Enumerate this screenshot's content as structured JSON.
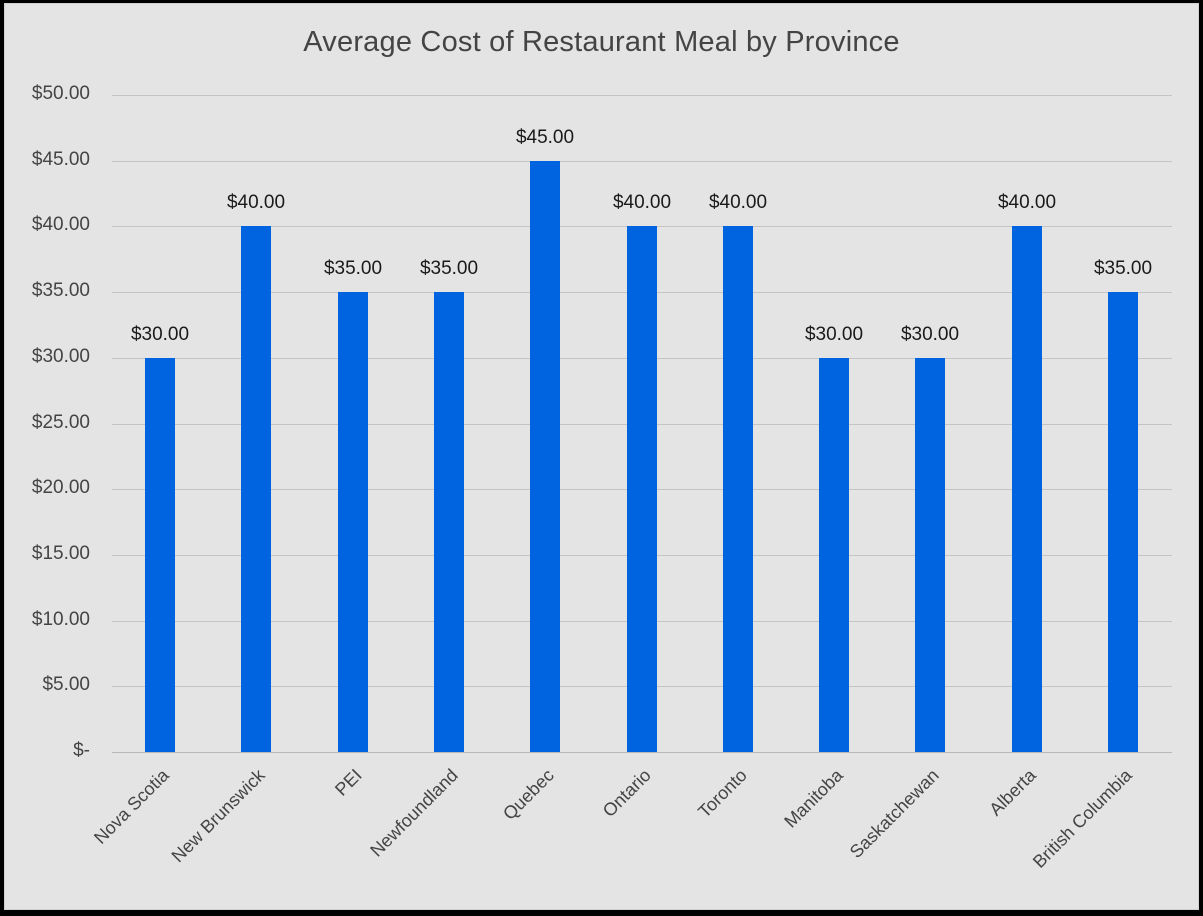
{
  "chart_data": {
    "type": "bar",
    "title": "Average Cost of Restaurant Meal by Province",
    "xlabel": "",
    "ylabel": "",
    "categories": [
      "Nova Scotia",
      "New Brunswick",
      "PEI",
      "Newfoundland",
      "Quebec",
      "Ontario",
      "Toronto",
      "Manitoba",
      "Saskatchewan",
      "Alberta",
      "British Columbia"
    ],
    "values": [
      30,
      40,
      35,
      35,
      45,
      40,
      40,
      30,
      30,
      40,
      35
    ],
    "data_labels": [
      "$30.00",
      "$40.00",
      "$35.00",
      "$35.00",
      "$45.00",
      "$40.00",
      "$40.00",
      "$30.00",
      "$30.00",
      "$40.00",
      "$35.00"
    ],
    "ylim": [
      0,
      50
    ],
    "y_ticks": [
      0,
      5,
      10,
      15,
      20,
      25,
      30,
      35,
      40,
      45,
      50
    ],
    "y_tick_labels": [
      "$-",
      "$5.00",
      "$10.00",
      "$15.00",
      "$20.00",
      "$25.00",
      "$30.00",
      "$35.00",
      "$40.00",
      "$45.00",
      "$50.00"
    ],
    "grid": true,
    "legend": "none",
    "bar_color": "#0063e0",
    "x_label_rotation": -45
  }
}
